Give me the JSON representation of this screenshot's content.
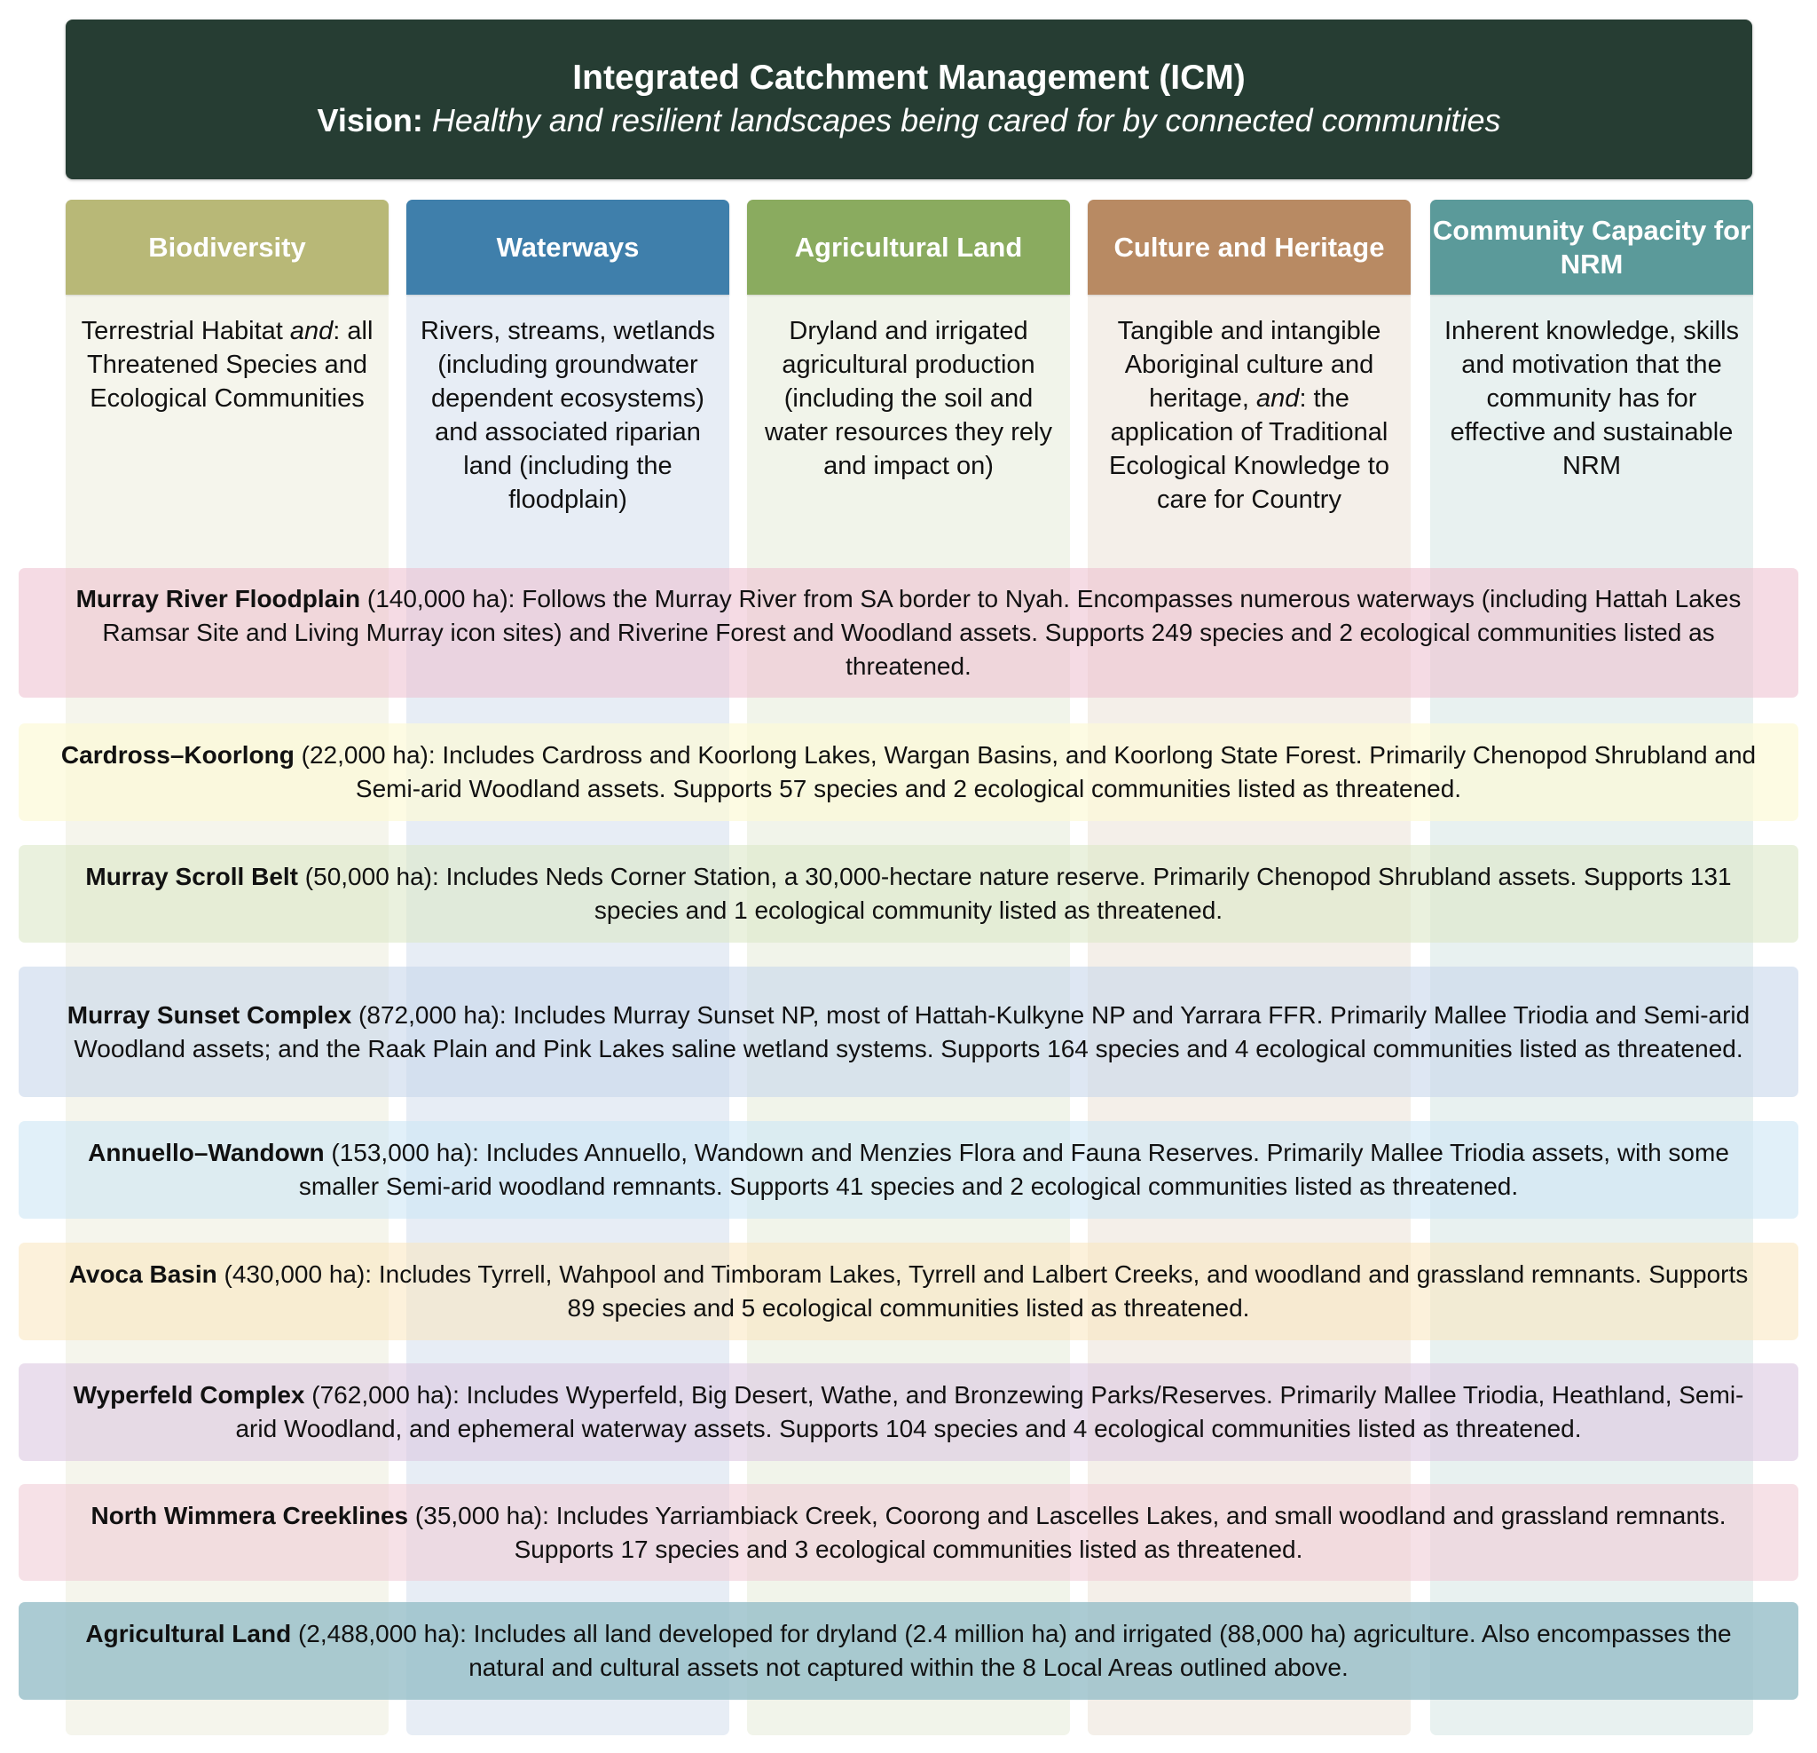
{
  "header": {
    "title": "Integrated Catchment Management (ICM)",
    "vision_label": "Vision:",
    "vision_text": "Healthy and resilient landscapes being cared for by connected communities",
    "color": "#263d33"
  },
  "columns": [
    {
      "title": "Biodiversity",
      "header_color": "#b8b877",
      "body_color": "#f5f5ec",
      "desc_pre": "Terrestrial Habitat ",
      "desc_em": "and",
      "desc_post": ": all Threatened Species and Ecological Communities"
    },
    {
      "title": "Waterways",
      "header_color": "#3f7fab",
      "body_color": "#e7edf5",
      "desc_pre": "Rivers, streams, wetlands (including groundwater dependent ecosystems) and associated riparian land (including the floodplain)",
      "desc_em": "",
      "desc_post": ""
    },
    {
      "title": "Agricultural Land",
      "header_color": "#8aab5f",
      "body_color": "#f1f4ea",
      "desc_pre": "Dryland and irrigated agricultural production (including the soil and water resources they rely and impact on)",
      "desc_em": "",
      "desc_post": ""
    },
    {
      "title": "Culture and Heritage",
      "header_color": "#b88a63",
      "body_color": "#f4efe9",
      "desc_pre": "Tangible and intangible Aboriginal culture and heritage, ",
      "desc_em": "and",
      "desc_post": ": the application of Traditional Ecological Knowledge to care for Country"
    },
    {
      "title": "Community Capacity for NRM",
      "header_color": "#5b9a9a",
      "body_color": "#e8f1f0",
      "desc_pre": "Inherent knowledge, skills and motivation that the community has for effective and sustainable NRM",
      "desc_em": "",
      "desc_post": ""
    }
  ],
  "areas": [
    {
      "name": "Murray River Floodplain",
      "text": " (140,000 ha): Follows the Murray River from SA border to Nyah. Encompasses numerous waterways (including Hattah Lakes Ramsar Site and Living Murray icon sites) and Riverine Forest and Woodland assets. Supports 249 species and 2 ecological communities listed as threatened.",
      "color": "rgba(236,190,206,0.55)"
    },
    {
      "name": "Cardross–Koorlong",
      "text": " (22,000 ha): Includes Cardross and Koorlong Lakes, Wargan Basins, and Koorlong State Forest. Primarily Chenopod Shrubland and Semi-arid Woodland assets. Supports 57 species and 2 ecological communities listed as threatened.",
      "color": "rgba(252,250,215,0.7)"
    },
    {
      "name": "Murray Scroll Belt",
      "text": " (50,000 ha): Includes Neds Corner Station, a 30,000-hectare nature reserve. Primarily Chenopod Shrubland assets. Supports 131 species and 1 ecological community listed as threatened.",
      "color": "rgba(220,232,200,0.6)"
    },
    {
      "name": "Murray Sunset Complex",
      "text": " (872,000 ha): Includes Murray Sunset NP, most of Hattah-Kulkyne NP and Yarrara FFR. Primarily Mallee Triodia and Semi-arid Woodland assets; and the Raak Plain and Pink Lakes saline wetland systems. Supports 164 species and 4 ecological communities listed as threatened.",
      "color": "rgba(200,215,235,0.6)"
    },
    {
      "name": "Annuello–Wandown",
      "text": " (153,000 ha): Includes Annuello, Wandown and Menzies Flora and Fauna Reserves. Primarily Mallee Triodia assets, with some smaller Semi-arid woodland remnants. Supports 41 species and 2 ecological communities listed as threatened.",
      "color": "rgba(205,230,245,0.6)"
    },
    {
      "name": "Avoca Basin",
      "text": " (430,000 ha): Includes Tyrrell, Wahpool and Timboram Lakes, Tyrrell and Lalbert Creeks, and woodland and grassland remnants. Supports 89 species and 5 ecological communities listed as threatened.",
      "color": "rgba(250,230,190,0.55)"
    },
    {
      "name": "Wyperfeld Complex",
      "text": " (762,000 ha): Includes Wyperfeld, Big Desert, Wathe, and Bronzewing Parks/Reserves. Primarily Mallee Triodia, Heathland, Semi-arid Woodland, and ephemeral waterway assets. Supports 104 species and 4 ecological communities listed as threatened.",
      "color": "rgba(220,200,225,0.6)"
    },
    {
      "name": "North Wimmera Creeklines",
      "text": " (35,000 ha): Includes Yarriambiack Creek, Coorong and Lascelles Lakes, and small woodland and grassland remnants. Supports 17 species and 3 ecological communities listed as threatened.",
      "color": "rgba(240,205,215,0.6)"
    },
    {
      "name": "Agricultural Land",
      "text": " (2,488,000 ha): Includes all land developed for dryland (2.4 million ha) and irrigated (88,000 ha) agriculture. Also encompasses the natural and cultural assets not captured within the 8 Local Areas outlined above.",
      "color": "rgba(150,190,200,0.8)"
    }
  ]
}
